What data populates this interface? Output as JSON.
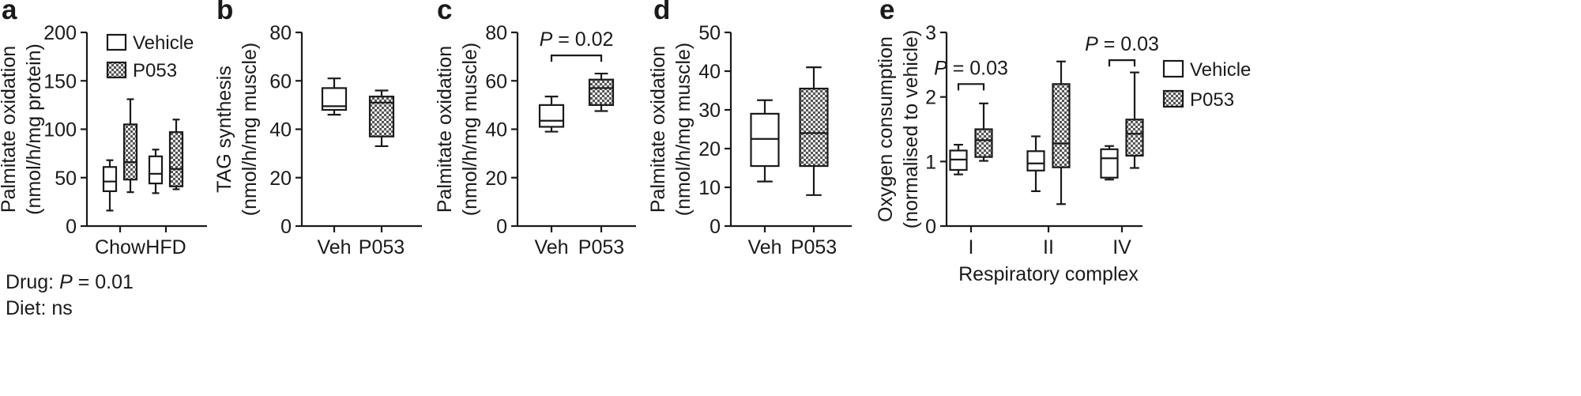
{
  "chart_data": [
    {
      "id": "a",
      "type": "box",
      "panel_label": "a",
      "ylabel_lines": [
        "Palmitate oxidation",
        "(nmol/h/mg protein)"
      ],
      "ylim": [
        0,
        200
      ],
      "yticks": [
        0,
        50,
        100,
        150,
        200
      ],
      "ytick_labels": [
        "0",
        "50",
        "100",
        "150",
        "200"
      ],
      "categories": [
        "Chow",
        "HFD"
      ],
      "series": [
        {
          "name": "Vehicle",
          "pattern": "open",
          "boxes": [
            {
              "whisker_low": 16,
              "q1": 36,
              "median": 46,
              "q3": 61,
              "whisker_high": 68
            },
            {
              "whisker_low": 34,
              "q1": 44,
              "median": 54,
              "q3": 72,
              "whisker_high": 79
            }
          ]
        },
        {
          "name": "P053",
          "pattern": "hatched",
          "boxes": [
            {
              "whisker_low": 35,
              "q1": 48,
              "median": 66,
              "q3": 105,
              "whisker_high": 131
            },
            {
              "whisker_low": 38,
              "q1": 41,
              "median": 59,
              "q3": 97,
              "whisker_high": 110
            }
          ]
        }
      ],
      "legend": [
        "Vehicle",
        "P053"
      ],
      "legend_position": "top-right",
      "annotations": [
        {
          "prefix": "Drug: ",
          "pvar": "P",
          "rest": " = 0.01"
        },
        {
          "prefix": "Diet: ns",
          "pvar": "",
          "rest": ""
        }
      ]
    },
    {
      "id": "b",
      "type": "box",
      "panel_label": "b",
      "ylabel_lines": [
        "TAG synthesis",
        "(nmol/h/mg muscle)"
      ],
      "ylim": [
        0,
        80
      ],
      "yticks": [
        0,
        20,
        40,
        60,
        80
      ],
      "ytick_labels": [
        "0",
        "20",
        "40",
        "60",
        "80"
      ],
      "categories": [
        "Veh",
        "P053"
      ],
      "boxes": [
        {
          "category": "Veh",
          "pattern": "open",
          "whisker_low": 46,
          "q1": 48,
          "median": 49.5,
          "q3": 57,
          "whisker_high": 61
        },
        {
          "category": "P053",
          "pattern": "hatched",
          "whisker_low": 33,
          "q1": 37,
          "median": 51,
          "q3": 53.5,
          "whisker_high": 56
        }
      ]
    },
    {
      "id": "c",
      "type": "box",
      "panel_label": "c",
      "ylabel_lines": [
        "Palmitate oxidation",
        "(nmol/h/mg muscle)"
      ],
      "ylim": [
        0,
        80
      ],
      "yticks": [
        0,
        20,
        40,
        60,
        80
      ],
      "ytick_labels": [
        "0",
        "20",
        "40",
        "60",
        "80"
      ],
      "categories": [
        "Veh",
        "P053"
      ],
      "boxes": [
        {
          "category": "Veh",
          "pattern": "open",
          "whisker_low": 39,
          "q1": 41,
          "median": 43.5,
          "q3": 50,
          "whisker_high": 53.5
        },
        {
          "category": "P053",
          "pattern": "hatched",
          "whisker_low": 47.5,
          "q1": 50,
          "median": 57,
          "q3": 60.5,
          "whisker_high": 63
        }
      ],
      "brackets": [
        {
          "from": 0,
          "to": 1,
          "y": 70.5,
          "pvar": "P",
          "rest": " = 0.02"
        }
      ]
    },
    {
      "id": "d",
      "type": "box",
      "panel_label": "d",
      "ylabel_lines": [
        "Palmitate oxidation",
        "(nmol/h/mg muscle)"
      ],
      "ylim": [
        0,
        50
      ],
      "yticks": [
        0,
        10,
        20,
        30,
        40,
        50
      ],
      "ytick_labels": [
        "0",
        "10",
        "20",
        "30",
        "40",
        "50"
      ],
      "categories": [
        "Veh",
        "P053"
      ],
      "boxes": [
        {
          "category": "Veh",
          "pattern": "open",
          "whisker_low": 11.5,
          "q1": 15.5,
          "median": 22.5,
          "q3": 29,
          "whisker_high": 32.5
        },
        {
          "category": "P053",
          "pattern": "hatched",
          "whisker_low": 8,
          "q1": 15.5,
          "median": 24,
          "q3": 35.5,
          "whisker_high": 41
        }
      ]
    },
    {
      "id": "e",
      "type": "box",
      "panel_label": "e",
      "ylabel_lines": [
        "Oxygen consumption",
        "(normalised to vehicle)"
      ],
      "xlabel": "Respiratory complex",
      "ylim": [
        0,
        3
      ],
      "yticks": [
        0,
        1,
        2,
        3
      ],
      "ytick_labels": [
        "0",
        "1",
        "2",
        "3"
      ],
      "categories": [
        "I",
        "II",
        "IV"
      ],
      "series": [
        {
          "name": "Vehicle",
          "pattern": "open",
          "boxes": [
            {
              "whisker_low": 0.8,
              "q1": 0.87,
              "median": 1.03,
              "q3": 1.17,
              "whisker_high": 1.26
            },
            {
              "whisker_low": 0.54,
              "q1": 0.86,
              "median": 0.97,
              "q3": 1.16,
              "whisker_high": 1.39
            },
            {
              "whisker_low": 0.72,
              "q1": 0.75,
              "median": 1.05,
              "q3": 1.19,
              "whisker_high": 1.24
            }
          ]
        },
        {
          "name": "P053",
          "pattern": "hatched",
          "boxes": [
            {
              "whisker_low": 1.01,
              "q1": 1.07,
              "median": 1.33,
              "q3": 1.5,
              "whisker_high": 1.9
            },
            {
              "whisker_low": 0.34,
              "q1": 0.91,
              "median": 1.28,
              "q3": 2.2,
              "whisker_high": 2.55
            },
            {
              "whisker_low": 0.9,
              "q1": 1.09,
              "median": 1.43,
              "q3": 1.65,
              "whisker_high": 2.38
            }
          ]
        }
      ],
      "legend": [
        "Vehicle",
        "P053"
      ],
      "legend_position": "right",
      "brackets": [
        {
          "group": 0,
          "y": 2.2,
          "pvar": "P",
          "rest": " = 0.03"
        },
        {
          "group": 2,
          "y": 2.57,
          "pvar": "P",
          "rest": " = 0.03"
        }
      ]
    }
  ]
}
